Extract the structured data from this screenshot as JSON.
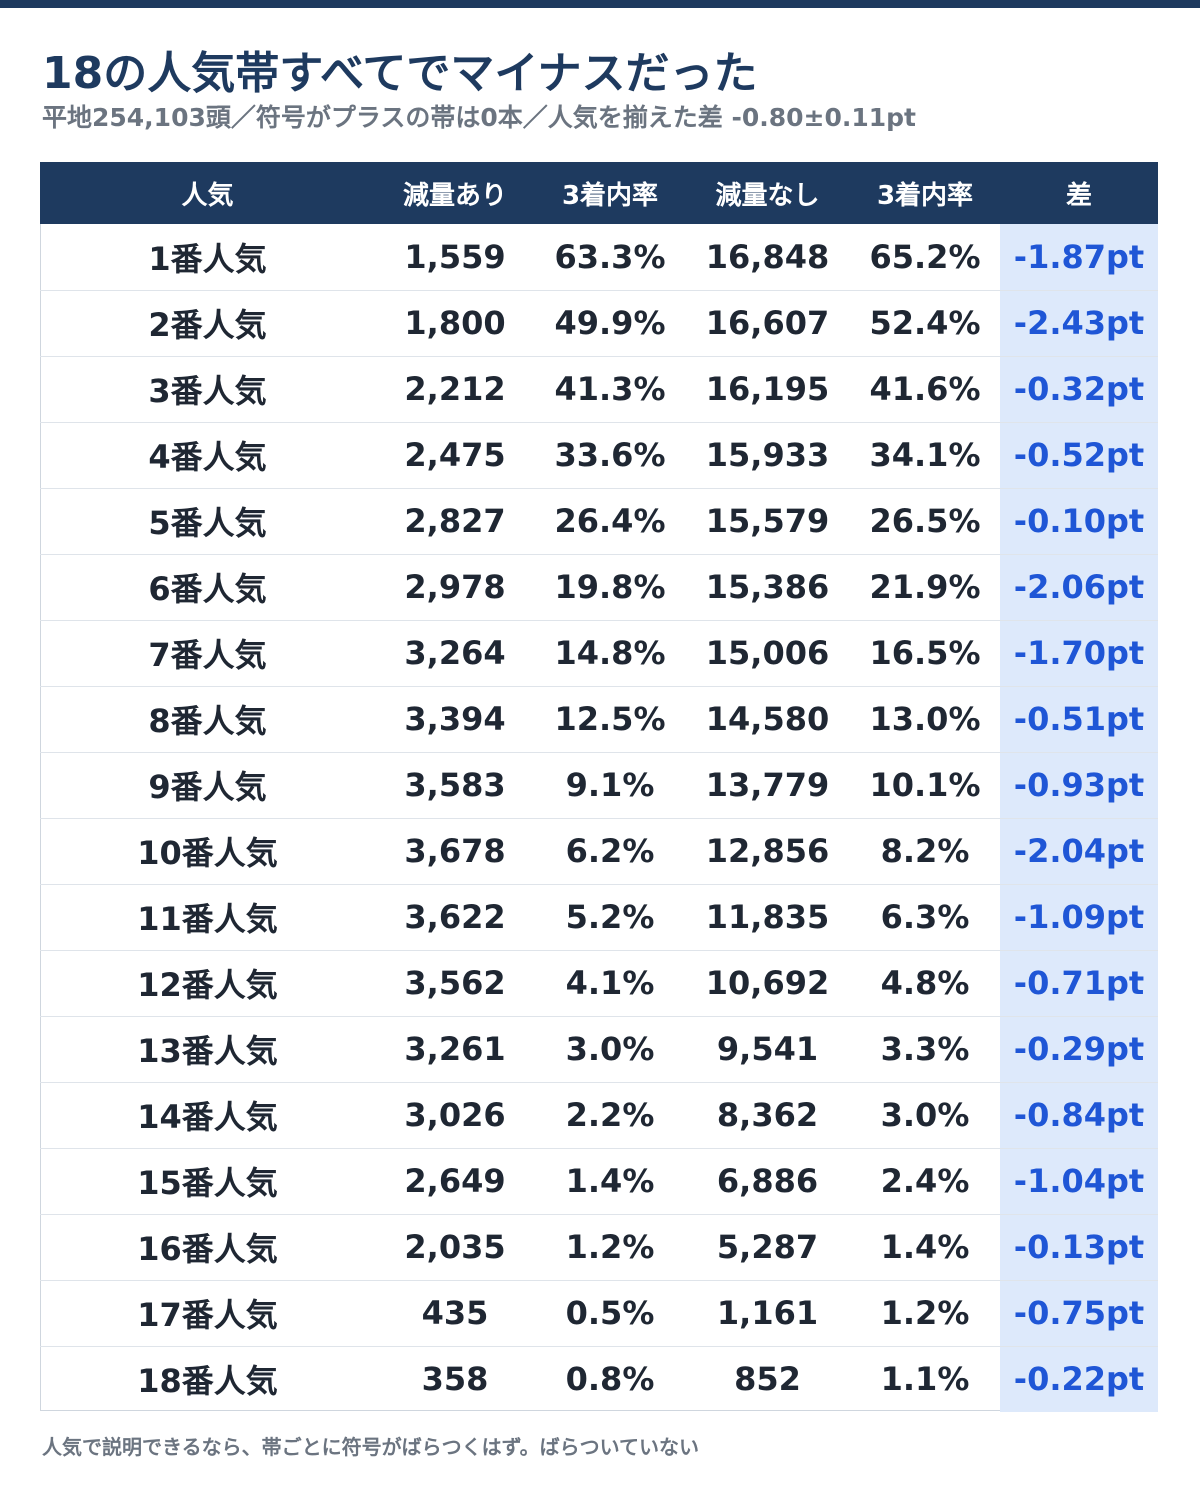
{
  "title": "18の人気帯すべてでマイナスだった",
  "subtitle": "平地254,103頭／符号がプラスの帯は0本／人気を揃えた差 -0.80±0.11pt",
  "footnote": "人気で説明できるなら、帯ごとに符号がばらつくはず。ばらついていない",
  "colors": {
    "header_bg": "#1e3a5f",
    "diff_bg": "#dde9fb",
    "diff_text": "#1f56d6"
  },
  "chart_data": {
    "type": "table",
    "columns": [
      "人気",
      "減量あり",
      "3着内率",
      "減量なし",
      "3着内率",
      "差"
    ],
    "rows": [
      [
        "1番人気",
        "1,559",
        "63.3%",
        "16,848",
        "65.2%",
        "-1.87pt"
      ],
      [
        "2番人気",
        "1,800",
        "49.9%",
        "16,607",
        "52.4%",
        "-2.43pt"
      ],
      [
        "3番人気",
        "2,212",
        "41.3%",
        "16,195",
        "41.6%",
        "-0.32pt"
      ],
      [
        "4番人気",
        "2,475",
        "33.6%",
        "15,933",
        "34.1%",
        "-0.52pt"
      ],
      [
        "5番人気",
        "2,827",
        "26.4%",
        "15,579",
        "26.5%",
        "-0.10pt"
      ],
      [
        "6番人気",
        "2,978",
        "19.8%",
        "15,386",
        "21.9%",
        "-2.06pt"
      ],
      [
        "7番人気",
        "3,264",
        "14.8%",
        "15,006",
        "16.5%",
        "-1.70pt"
      ],
      [
        "8番人気",
        "3,394",
        "12.5%",
        "14,580",
        "13.0%",
        "-0.51pt"
      ],
      [
        "9番人気",
        "3,583",
        "9.1%",
        "13,779",
        "10.1%",
        "-0.93pt"
      ],
      [
        "10番人気",
        "3,678",
        "6.2%",
        "12,856",
        "8.2%",
        "-2.04pt"
      ],
      [
        "11番人気",
        "3,622",
        "5.2%",
        "11,835",
        "6.3%",
        "-1.09pt"
      ],
      [
        "12番人気",
        "3,562",
        "4.1%",
        "10,692",
        "4.8%",
        "-0.71pt"
      ],
      [
        "13番人気",
        "3,261",
        "3.0%",
        "9,541",
        "3.3%",
        "-0.29pt"
      ],
      [
        "14番人気",
        "3,026",
        "2.2%",
        "8,362",
        "3.0%",
        "-0.84pt"
      ],
      [
        "15番人気",
        "2,649",
        "1.4%",
        "6,886",
        "2.4%",
        "-1.04pt"
      ],
      [
        "16番人気",
        "2,035",
        "1.2%",
        "5,287",
        "1.4%",
        "-0.13pt"
      ],
      [
        "17番人気",
        "435",
        "0.5%",
        "1,161",
        "1.2%",
        "-0.75pt"
      ],
      [
        "18番人気",
        "358",
        "0.8%",
        "852",
        "1.1%",
        "-0.22pt"
      ]
    ]
  }
}
